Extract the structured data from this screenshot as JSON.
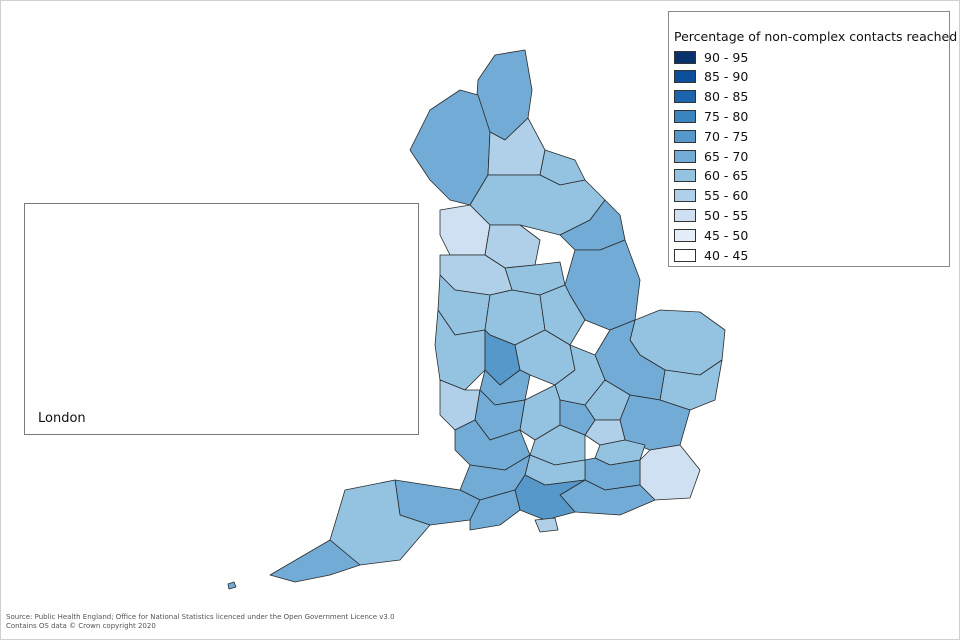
{
  "legend": {
    "title": "Percentage of non-complex contacts reached",
    "items": [
      {
        "label": "90 - 95",
        "color": "#08306b"
      },
      {
        "label": "85 - 90",
        "color": "#0b4e9a"
      },
      {
        "label": "80 - 85",
        "color": "#1c64ad"
      },
      {
        "label": "75 - 80",
        "color": "#3a84c0"
      },
      {
        "label": "70 - 75",
        "color": "#5598c9"
      },
      {
        "label": "65 - 70",
        "color": "#72acd6"
      },
      {
        "label": "60 - 65",
        "color": "#94c3e2"
      },
      {
        "label": "55 - 60",
        "color": "#afd0e8"
      },
      {
        "label": "50 - 55",
        "color": "#cfe0f2"
      },
      {
        "label": "45 - 50",
        "color": "#e4eef8"
      },
      {
        "label": "40 - 45",
        "color": "#ffffff"
      }
    ]
  },
  "inset": {
    "label": "London"
  },
  "source": {
    "line1": "Source: Public Health England; Office for National Statistics licenced under the Open Government Licence v3.0",
    "line2": "Contains OS data © Crown copyright 2020"
  }
}
